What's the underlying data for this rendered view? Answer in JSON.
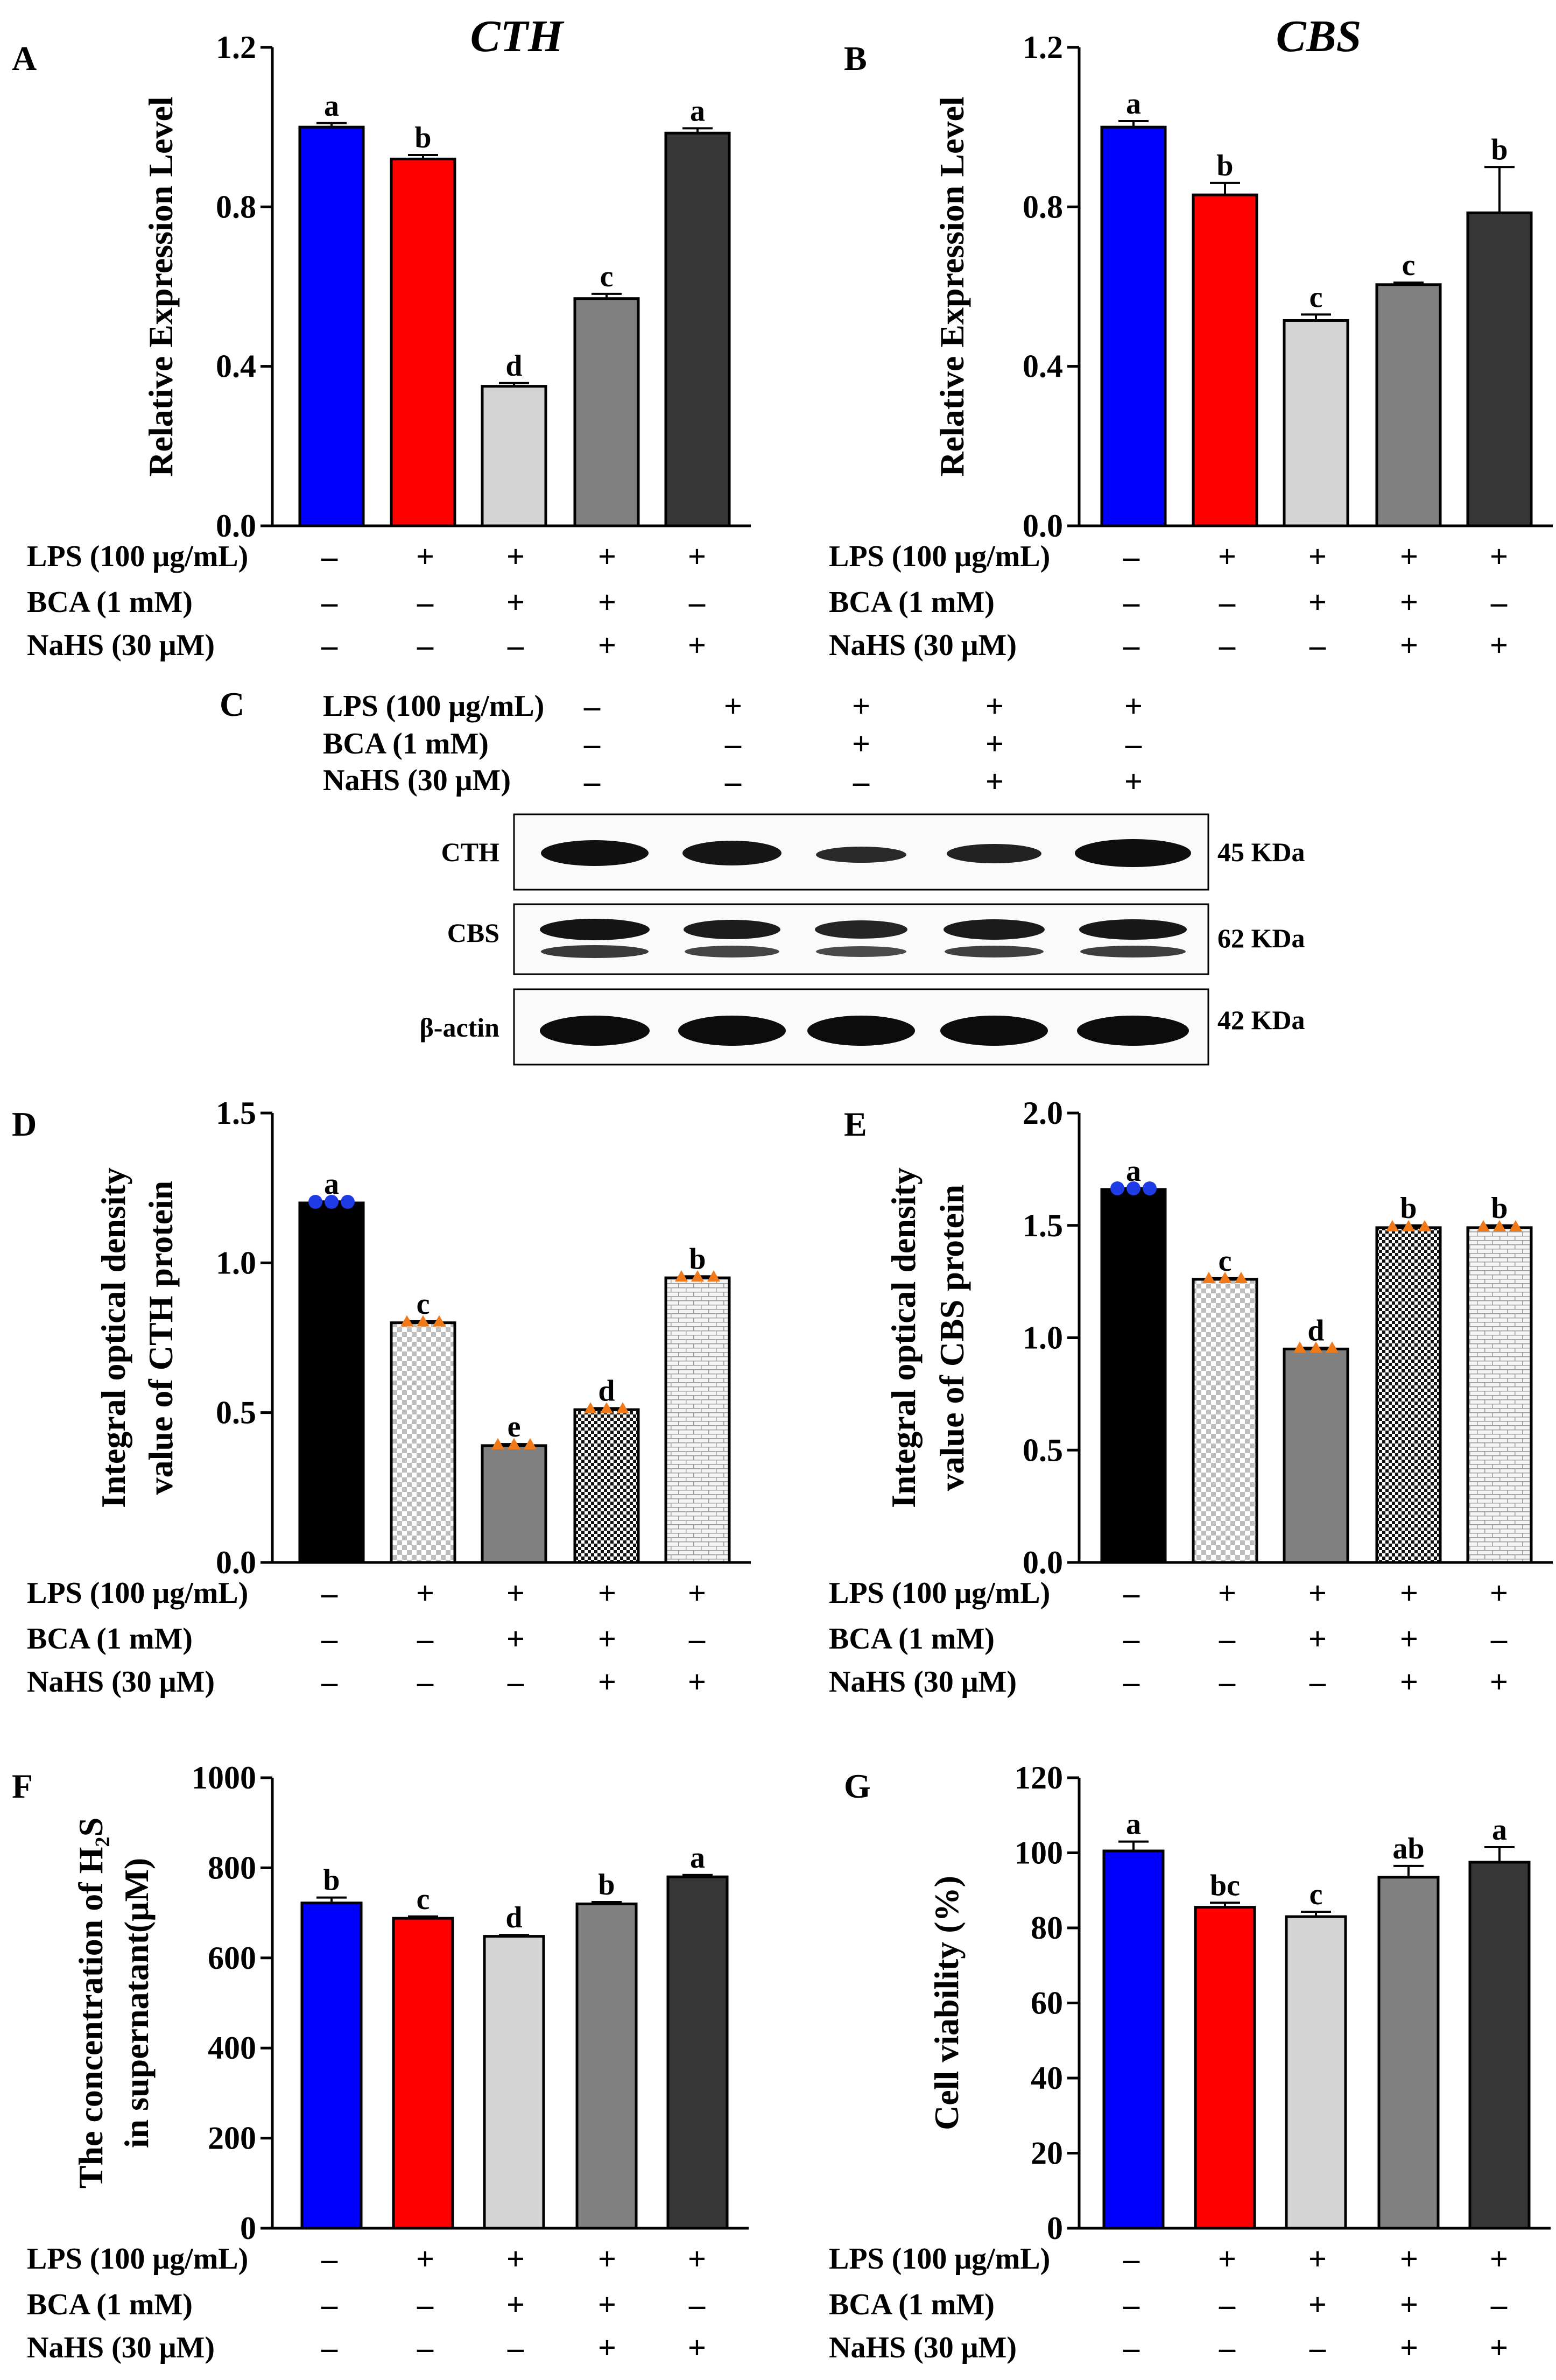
{
  "conditions": {
    "labels": [
      "LPS (100 μg/mL)",
      "BCA (1 mM)",
      "NaHS (30 μM)"
    ],
    "signs": [
      [
        "–",
        "+",
        "+",
        "+",
        "+"
      ],
      [
        "–",
        "–",
        "+",
        "+",
        "–"
      ],
      [
        "–",
        "–",
        "–",
        "+",
        "+"
      ]
    ]
  },
  "colors": {
    "blue": "#0000ff",
    "red": "#ff0000",
    "light_gray": "#d4d4d4",
    "mid_gray": "#808080",
    "dark_gray": "#363636",
    "black": "#000000",
    "dot_blue": "#1f3be6",
    "dot_orange": "#f07a1a"
  },
  "western_blot": {
    "letter": "C",
    "rows": [
      {
        "label": "CTH",
        "kda": "45 KDa"
      },
      {
        "label": "CBS",
        "kda": "62 KDa"
      },
      {
        "label": "β-actin",
        "kda": "42 KDa"
      }
    ]
  },
  "chart_data": [
    {
      "letter": "A",
      "type": "bar",
      "title": "CTH",
      "xlabel": "",
      "ylabel": "Relative Expression Level",
      "ylim": [
        0,
        1.2
      ],
      "yticks": [
        "0.0",
        "0.4",
        "0.8",
        "1.2"
      ],
      "values": [
        1.0,
        0.92,
        0.35,
        0.57,
        0.985
      ],
      "errors": [
        0.01,
        0.01,
        0.008,
        0.012,
        0.012
      ],
      "sig": [
        "a",
        "b",
        "d",
        "c",
        "a"
      ],
      "fills": [
        "blue",
        "red",
        "light_gray",
        "mid_gray",
        "dark_gray"
      ],
      "patterns": [
        "solid",
        "solid",
        "solid",
        "solid",
        "solid"
      ]
    },
    {
      "letter": "B",
      "type": "bar",
      "title": "CBS",
      "xlabel": "",
      "ylabel": "Relative Expression Level",
      "ylim": [
        0,
        1.2
      ],
      "yticks": [
        "0.0",
        "0.4",
        "0.8",
        "1.2"
      ],
      "values": [
        1.0,
        0.83,
        0.515,
        0.605,
        0.785
      ],
      "errors": [
        0.015,
        0.03,
        0.015,
        0.005,
        0.115
      ],
      "sig": [
        "a",
        "b",
        "c",
        "c",
        "b"
      ],
      "fills": [
        "blue",
        "red",
        "light_gray",
        "mid_gray",
        "dark_gray"
      ],
      "patterns": [
        "solid",
        "solid",
        "solid",
        "solid",
        "solid"
      ]
    },
    {
      "letter": "D",
      "type": "bar",
      "title": "",
      "xlabel": "",
      "ylabel": [
        "Integral optical density",
        "value of CTH protein"
      ],
      "ylim": [
        0,
        1.5
      ],
      "yticks": [
        "0.0",
        "0.5",
        "1.0",
        "1.5"
      ],
      "values": [
        1.2,
        0.8,
        0.39,
        0.51,
        0.95
      ],
      "errors": [
        0.005,
        0.005,
        0.005,
        0.005,
        0.005
      ],
      "sig": [
        "a",
        "c",
        "e",
        "d",
        "b"
      ],
      "fills": [
        "black",
        "light_gray",
        "mid_gray",
        "black",
        "light_gray"
      ],
      "patterns": [
        "solid",
        "check",
        "solid",
        "dense",
        "brick"
      ],
      "dots": [
        "dot_blue",
        "dot_orange",
        "dot_orange",
        "dot_orange",
        "dot_orange"
      ]
    },
    {
      "letter": "E",
      "type": "bar",
      "title": "",
      "xlabel": "",
      "ylabel": [
        "Integral optical density",
        "value of CBS protein"
      ],
      "ylim": [
        0,
        2.0
      ],
      "yticks": [
        "0.0",
        "0.5",
        "1.0",
        "1.5",
        "2.0"
      ],
      "values": [
        1.66,
        1.26,
        0.95,
        1.49,
        1.49
      ],
      "errors": [
        0.005,
        0.005,
        0.005,
        0.01,
        0.01
      ],
      "sig": [
        "a",
        "c",
        "d",
        "b",
        "b"
      ],
      "fills": [
        "black",
        "light_gray",
        "mid_gray",
        "black",
        "light_gray"
      ],
      "patterns": [
        "solid",
        "check",
        "solid",
        "dense",
        "brick"
      ],
      "dots": [
        "dot_blue",
        "dot_orange",
        "dot_orange",
        "dot_orange",
        "dot_orange"
      ]
    },
    {
      "letter": "F",
      "type": "bar",
      "title": "",
      "xlabel": "",
      "ylabel": [
        "The concentration of H₂S",
        "in supernatant(μM)"
      ],
      "ylim": [
        0,
        1000
      ],
      "yticks": [
        "0",
        "200",
        "400",
        "600",
        "800",
        "1000"
      ],
      "values": [
        722,
        688,
        648,
        720,
        780
      ],
      "errors": [
        12,
        4,
        3,
        4,
        4
      ],
      "sig": [
        "b",
        "c",
        "d",
        "b",
        "a"
      ],
      "fills": [
        "blue",
        "red",
        "light_gray",
        "mid_gray",
        "dark_gray"
      ],
      "patterns": [
        "solid",
        "solid",
        "solid",
        "solid",
        "solid"
      ]
    },
    {
      "letter": "G",
      "type": "bar",
      "title": "",
      "xlabel": "",
      "ylabel": "Cell viability (%)",
      "ylim": [
        0,
        120
      ],
      "yticks": [
        "0",
        "20",
        "40",
        "60",
        "80",
        "100",
        "120"
      ],
      "values": [
        100.5,
        85.5,
        83.0,
        93.5,
        97.5
      ],
      "errors": [
        2.5,
        1.2,
        1.3,
        3.0,
        4.0
      ],
      "sig": [
        "a",
        "bc",
        "c",
        "ab",
        "a"
      ],
      "fills": [
        "blue",
        "red",
        "light_gray",
        "mid_gray",
        "dark_gray"
      ],
      "patterns": [
        "solid",
        "solid",
        "solid",
        "solid",
        "solid"
      ]
    }
  ]
}
